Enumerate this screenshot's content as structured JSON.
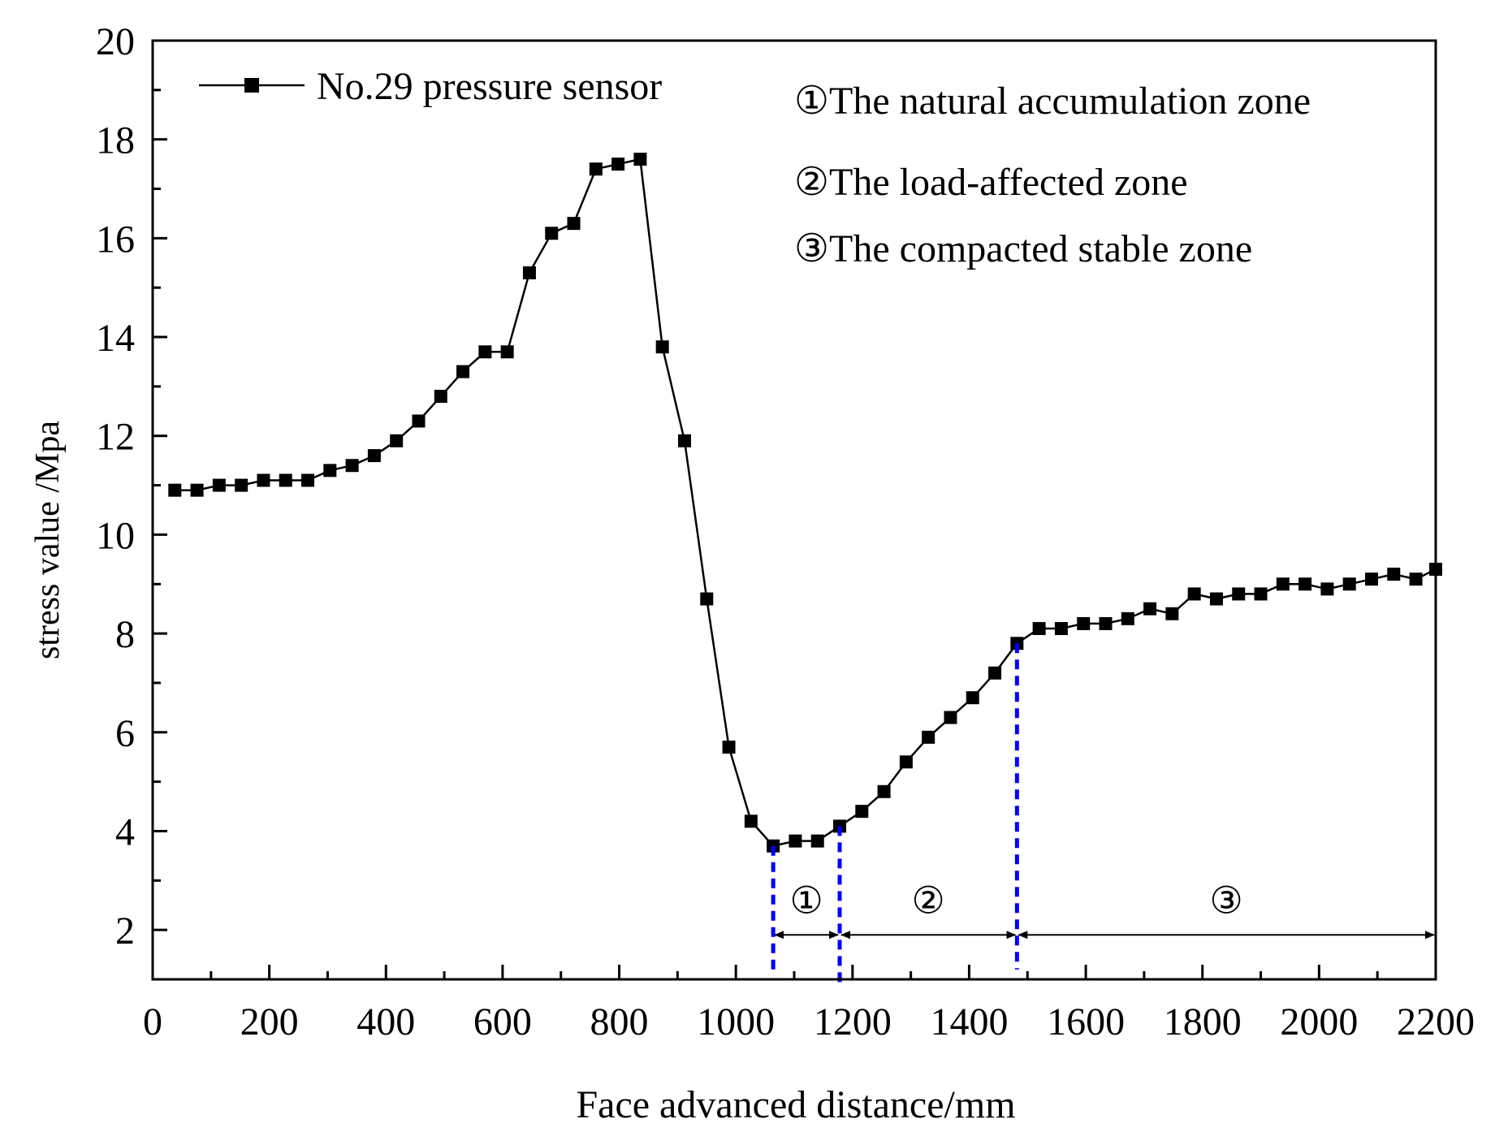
{
  "chart_data": {
    "type": "line",
    "title": "",
    "xlabel": "Face advanced distance/mm",
    "ylabel": "stress value /Mpa",
    "xlim": [
      0,
      2200
    ],
    "ylim": [
      1,
      20
    ],
    "xticks": [
      0,
      200,
      400,
      600,
      800,
      1000,
      1200,
      1400,
      1600,
      1800,
      2000,
      2200
    ],
    "xtick_labels": [
      "0",
      "200",
      "400",
      "600",
      "800",
      "1000",
      "1200",
      "1400",
      "1600",
      "1800",
      "2000",
      "2200"
    ],
    "yticks": [
      2,
      4,
      6,
      8,
      10,
      12,
      14,
      16,
      18,
      20
    ],
    "ytick_labels": [
      "2",
      "4",
      "6",
      "8",
      "10",
      "12",
      "14",
      "16",
      "18",
      "20"
    ],
    "grid": false,
    "legend": {
      "position": "top-left",
      "entries": [
        "No.29 pressure sensor"
      ]
    },
    "series": [
      {
        "name": "No.29 pressure sensor",
        "color": "#000000",
        "marker": "square",
        "x": [
          38,
          76,
          114,
          152,
          190,
          228,
          266,
          304,
          342,
          380,
          418,
          456,
          494,
          532,
          570,
          608,
          646,
          684,
          722,
          760,
          798,
          836,
          874,
          912,
          950,
          988,
          1026,
          1064,
          1102,
          1140,
          1178,
          1216,
          1254,
          1292,
          1330,
          1368,
          1406,
          1444,
          1482,
          1520,
          1558,
          1596,
          1634,
          1672,
          1710,
          1748,
          1786,
          1824,
          1862,
          1900,
          1938,
          1976,
          2014,
          2052,
          2090,
          2128,
          2166,
          2200
        ],
        "values": [
          10.9,
          10.9,
          11.0,
          11.0,
          11.1,
          11.1,
          11.1,
          11.3,
          11.4,
          11.6,
          11.9,
          12.3,
          12.8,
          13.3,
          13.7,
          13.7,
          15.3,
          16.1,
          16.3,
          17.4,
          17.5,
          17.6,
          13.8,
          11.9,
          8.7,
          5.7,
          4.2,
          3.7,
          3.8,
          3.8,
          4.1,
          4.4,
          4.8,
          5.4,
          5.9,
          6.3,
          6.7,
          7.2,
          7.8,
          8.1,
          8.1,
          8.2,
          8.2,
          8.3,
          8.5,
          8.4,
          8.8,
          8.7,
          8.8,
          8.8,
          9.0,
          9.0,
          8.9,
          9.0,
          9.1,
          9.2,
          9.1,
          9.3
        ]
      }
    ],
    "zone_boundaries": [
      1064,
      1178,
      1482
    ],
    "zone_boundary_color": "#0000ff",
    "zone_spans": [
      {
        "label": "①",
        "from": 1064,
        "to": 1178
      },
      {
        "label": "②",
        "from": 1178,
        "to": 1482
      },
      {
        "label": "③",
        "from": 1482,
        "to": 2200
      }
    ],
    "zone_arrow_y": 1.9,
    "zone_label_y": 2.6,
    "annotations": [
      "①The natural accumulation zone",
      "②The load-affected zone",
      "③The compacted stable zone"
    ]
  }
}
